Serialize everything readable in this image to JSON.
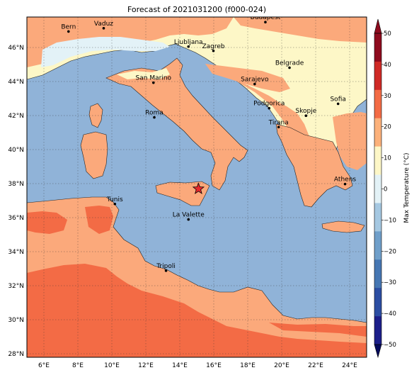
{
  "title": "Forecast of 2021031200 (f000-024)",
  "map": {
    "lon_ticks": [
      "6°E",
      "8°E",
      "10°E",
      "12°E",
      "14°E",
      "16°E",
      "18°E",
      "20°E",
      "22°E",
      "24°E"
    ],
    "lat_ticks": [
      "28°N",
      "30°N",
      "32°N",
      "34°N",
      "36°N",
      "38°N",
      "40°N",
      "42°N",
      "44°N",
      "46°N"
    ],
    "lon_range": [
      5.0,
      25.0
    ],
    "lat_range": [
      27.8,
      47.8
    ],
    "grid": true,
    "marker": {
      "type": "star",
      "color": "#e8272a",
      "lon": 15.1,
      "lat": 37.7
    },
    "cities": [
      {
        "name": "Bern",
        "lon": 7.45,
        "lat": 46.95
      },
      {
        "name": "Vaduz",
        "lon": 9.52,
        "lat": 47.14
      },
      {
        "name": "Budapest",
        "lon": 19.04,
        "lat": 47.5
      },
      {
        "name": "Ljubljana",
        "lon": 14.51,
        "lat": 46.06
      },
      {
        "name": "Zagreb",
        "lon": 15.98,
        "lat": 45.81
      },
      {
        "name": "Belgrade",
        "lon": 20.46,
        "lat": 44.82
      },
      {
        "name": "San Marino",
        "lon": 12.45,
        "lat": 43.94
      },
      {
        "name": "Sarajevo",
        "lon": 18.41,
        "lat": 43.86
      },
      {
        "name": "Sofia",
        "lon": 23.32,
        "lat": 42.7
      },
      {
        "name": "Podgorica",
        "lon": 19.26,
        "lat": 42.44
      },
      {
        "name": "Skopje",
        "lon": 21.43,
        "lat": 42.0
      },
      {
        "name": "Roma",
        "lon": 12.5,
        "lat": 41.9
      },
      {
        "name": "Tirana",
        "lon": 19.82,
        "lat": 41.33
      },
      {
        "name": "Athens",
        "lon": 23.73,
        "lat": 37.98
      },
      {
        "name": "Tunis",
        "lon": 10.18,
        "lat": 36.81
      },
      {
        "name": "La Valette",
        "lon": 14.51,
        "lat": 35.9
      },
      {
        "name": "Tripoli",
        "lon": 13.19,
        "lat": 32.89
      }
    ]
  },
  "colorbar": {
    "label": "Max Temperature (°C)",
    "ticks": [
      "−50",
      "−40",
      "−30",
      "−20",
      "−10",
      "0",
      "10",
      "20",
      "30",
      "40",
      "50"
    ],
    "range": [
      -50,
      50
    ],
    "colors": [
      "#1c1f8a",
      "#2c4ea3",
      "#4677b3",
      "#6f9fca",
      "#a5c8e2",
      "#e3f2f7",
      "#fdf7c7",
      "#fcb17b",
      "#f36b45",
      "#cf2a26",
      "#8e0b1e"
    ],
    "extend": "both"
  },
  "colors": {
    "sea": "#90b3d8",
    "land_cool": "#fdf7c7",
    "land_mild": "#fba97b",
    "land_warm": "#f36b45",
    "land_pale": "#e3f2f7"
  }
}
